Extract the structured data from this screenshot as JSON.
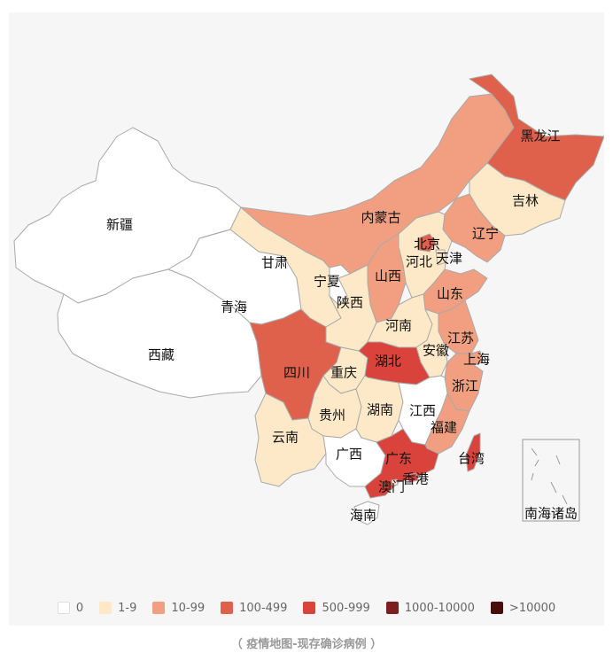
{
  "provinces": [
    {
      "name": "新疆",
      "level": "0",
      "color": "#ffffff"
    },
    {
      "name": "西藏",
      "level": "0",
      "color": "#ffffff"
    },
    {
      "name": "青海",
      "level": "0",
      "color": "#ffffff"
    },
    {
      "name": "甘肃",
      "level": "1-9",
      "color": "#fde9c8"
    },
    {
      "name": "内蒙古",
      "level": "10-99",
      "color": "#f19f80"
    },
    {
      "name": "黑龙江",
      "level": "100-499",
      "color": "#e0614b"
    },
    {
      "name": "吉林",
      "level": "1-9",
      "color": "#fde9c8"
    },
    {
      "name": "辽宁",
      "level": "10-99",
      "color": "#f19f80"
    },
    {
      "name": "北京",
      "level": "100-499",
      "color": "#e0614b"
    },
    {
      "name": "天津",
      "level": "1-9",
      "color": "#fde9c8"
    },
    {
      "name": "河北",
      "level": "1-9",
      "color": "#fde9c8"
    },
    {
      "name": "宁夏",
      "level": "0",
      "color": "#ffffff"
    },
    {
      "name": "山西",
      "level": "10-99",
      "color": "#f19f80"
    },
    {
      "name": "山东",
      "level": "10-99",
      "color": "#f19f80"
    },
    {
      "name": "陕西",
      "level": "1-9",
      "color": "#fde9c8"
    },
    {
      "name": "河南",
      "level": "1-9",
      "color": "#fde9c8"
    },
    {
      "name": "江苏",
      "level": "10-99",
      "color": "#f19f80"
    },
    {
      "name": "安徽",
      "level": "1-9",
      "color": "#fde9c8"
    },
    {
      "name": "上海",
      "level": "10-99",
      "color": "#f19f80"
    },
    {
      "name": "四川",
      "level": "100-499",
      "color": "#e0614b"
    },
    {
      "name": "重庆",
      "level": "1-9",
      "color": "#fde9c8"
    },
    {
      "name": "湖北",
      "level": "500-999",
      "color": "#d9433b"
    },
    {
      "name": "浙江",
      "level": "10-99",
      "color": "#f19f80"
    },
    {
      "name": "贵州",
      "level": "1-9",
      "color": "#fde9c8"
    },
    {
      "name": "湖南",
      "level": "1-9",
      "color": "#fde9c8"
    },
    {
      "name": "江西",
      "level": "0",
      "color": "#ffffff"
    },
    {
      "name": "福建",
      "level": "10-99",
      "color": "#f19f80"
    },
    {
      "name": "云南",
      "level": "1-9",
      "color": "#fde9c8"
    },
    {
      "name": "广西",
      "level": "0",
      "color": "#ffffff"
    },
    {
      "name": "广东",
      "level": "500-999",
      "color": "#d9433b"
    },
    {
      "name": "台湾",
      "level": "500-999",
      "color": "#d9433b"
    },
    {
      "name": "香港",
      "level": "500-999",
      "color": "#d9433b"
    },
    {
      "name": "澳门",
      "level": "1-9",
      "color": "#fde9c8"
    },
    {
      "name": "海南",
      "level": "0",
      "color": "#ffffff"
    },
    {
      "name": "南海诸岛",
      "level": "0",
      "color": "#ffffff"
    }
  ],
  "legend": [
    {
      "label": "0",
      "color": "#ffffff"
    },
    {
      "label": "1-9",
      "color": "#fde9c8"
    },
    {
      "label": "10-99",
      "color": "#f19f80"
    },
    {
      "label": "100-499",
      "color": "#e0614b"
    },
    {
      "label": "500-999",
      "color": "#d9433b"
    },
    {
      "label": "1000-10000",
      "color": "#7b1f20"
    },
    {
      "label": ">10000",
      "color": "#4a0d0d"
    }
  ],
  "caption": "（ 疫情地图-现存确诊病例 ）"
}
